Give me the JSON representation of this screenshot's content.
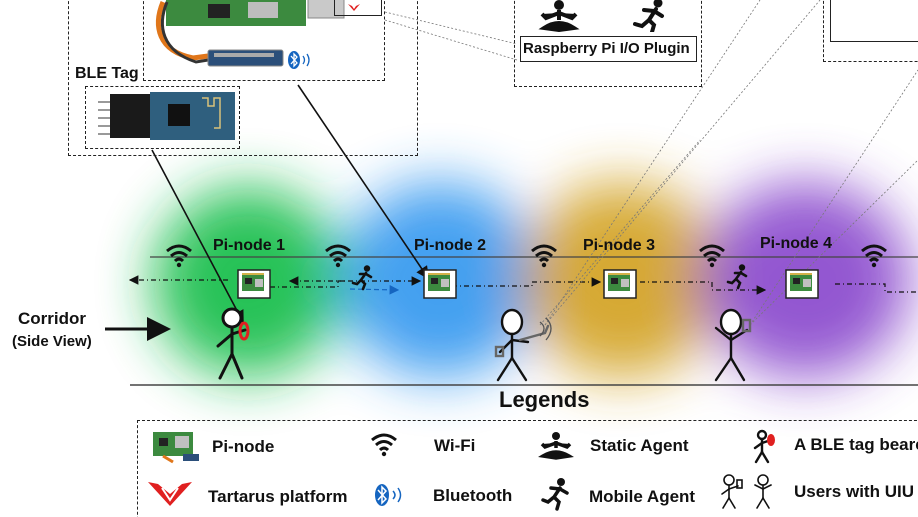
{
  "nodes": [
    {
      "label": "Pi-node 1",
      "color": "#1fbf4f"
    },
    {
      "label": "Pi-node 2",
      "color": "#3a9bf0"
    },
    {
      "label": "Pi-node 3",
      "color": "#d4a52a"
    },
    {
      "label": "Pi-node 4",
      "color": "#8e4fcf"
    }
  ],
  "labels": {
    "ble_tag": "BLE Tag",
    "plugin": "Raspberry Pi I/O Plugin",
    "corridor": "Corridor",
    "side_view": "(Side View)",
    "legends": "Legends"
  },
  "legend": {
    "pi_node": "Pi-node",
    "wifi": "Wi-Fi",
    "static_agent": "Static Agent",
    "ble_bearer": "A BLE tag bearer",
    "tartarus": "Tartarus platform",
    "bluetooth": "Bluetooth",
    "mobile_agent": "Mobile Agent",
    "users_uiu": "Users with UIU"
  },
  "icons": [
    "raspberry-pi-board-icon",
    "wifi-icon",
    "bluetooth-icon",
    "static-agent-icon",
    "mobile-agent-icon",
    "stick-figure-icon",
    "tartarus-logo-icon",
    "ble-tag-module-icon"
  ],
  "colors": {
    "ble_tag_red": "#e02020",
    "bluetooth_blue": "#1565c0"
  }
}
